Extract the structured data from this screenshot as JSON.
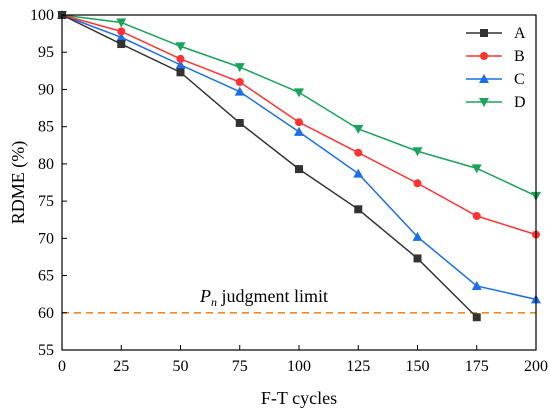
{
  "chart_data": {
    "type": "line",
    "xlabel": "F-T cycles",
    "ylabel": "RDME (%)",
    "x": [
      0,
      25,
      50,
      75,
      100,
      125,
      150,
      175,
      200
    ],
    "xlim": [
      0,
      200
    ],
    "ylim": [
      55,
      100
    ],
    "xticks": [
      "0",
      "25",
      "50",
      "75",
      "100",
      "125",
      "150",
      "175",
      "200"
    ],
    "yticks": [
      "55",
      "60",
      "65",
      "70",
      "75",
      "80",
      "85",
      "90",
      "95",
      "100"
    ],
    "grid": false,
    "legend_position": "top-right",
    "series": [
      {
        "name": "A",
        "color": "#333333",
        "marker": "square",
        "x": [
          0,
          25,
          50,
          75,
          100,
          125,
          150,
          175
        ],
        "values": [
          100,
          96.1,
          92.3,
          85.5,
          79.3,
          73.9,
          67.3,
          59.4
        ]
      },
      {
        "name": "B",
        "color": "#ff3333",
        "marker": "circle",
        "x": [
          0,
          25,
          50,
          75,
          100,
          125,
          150,
          175,
          200
        ],
        "values": [
          100,
          97.8,
          94.1,
          91.0,
          85.6,
          81.5,
          77.4,
          73.0,
          70.5
        ]
      },
      {
        "name": "C",
        "color": "#1a6fe8",
        "marker": "triangle-up",
        "x": [
          0,
          25,
          50,
          75,
          100,
          125,
          150,
          175,
          200
        ],
        "values": [
          100,
          97.0,
          93.3,
          89.7,
          84.3,
          78.7,
          70.2,
          63.6,
          61.8
        ]
      },
      {
        "name": "D",
        "color": "#1aa35a",
        "marker": "triangle-down",
        "x": [
          0,
          25,
          50,
          75,
          100,
          125,
          150,
          175,
          200
        ],
        "values": [
          100,
          99.0,
          95.8,
          93.0,
          89.6,
          84.7,
          81.7,
          79.4,
          75.7
        ]
      }
    ],
    "reference_line": {
      "y": 60,
      "color": "#f28a1a",
      "label_symbol": "P",
      "label_subscript": "n",
      "label_rest": " judgment limit"
    }
  }
}
